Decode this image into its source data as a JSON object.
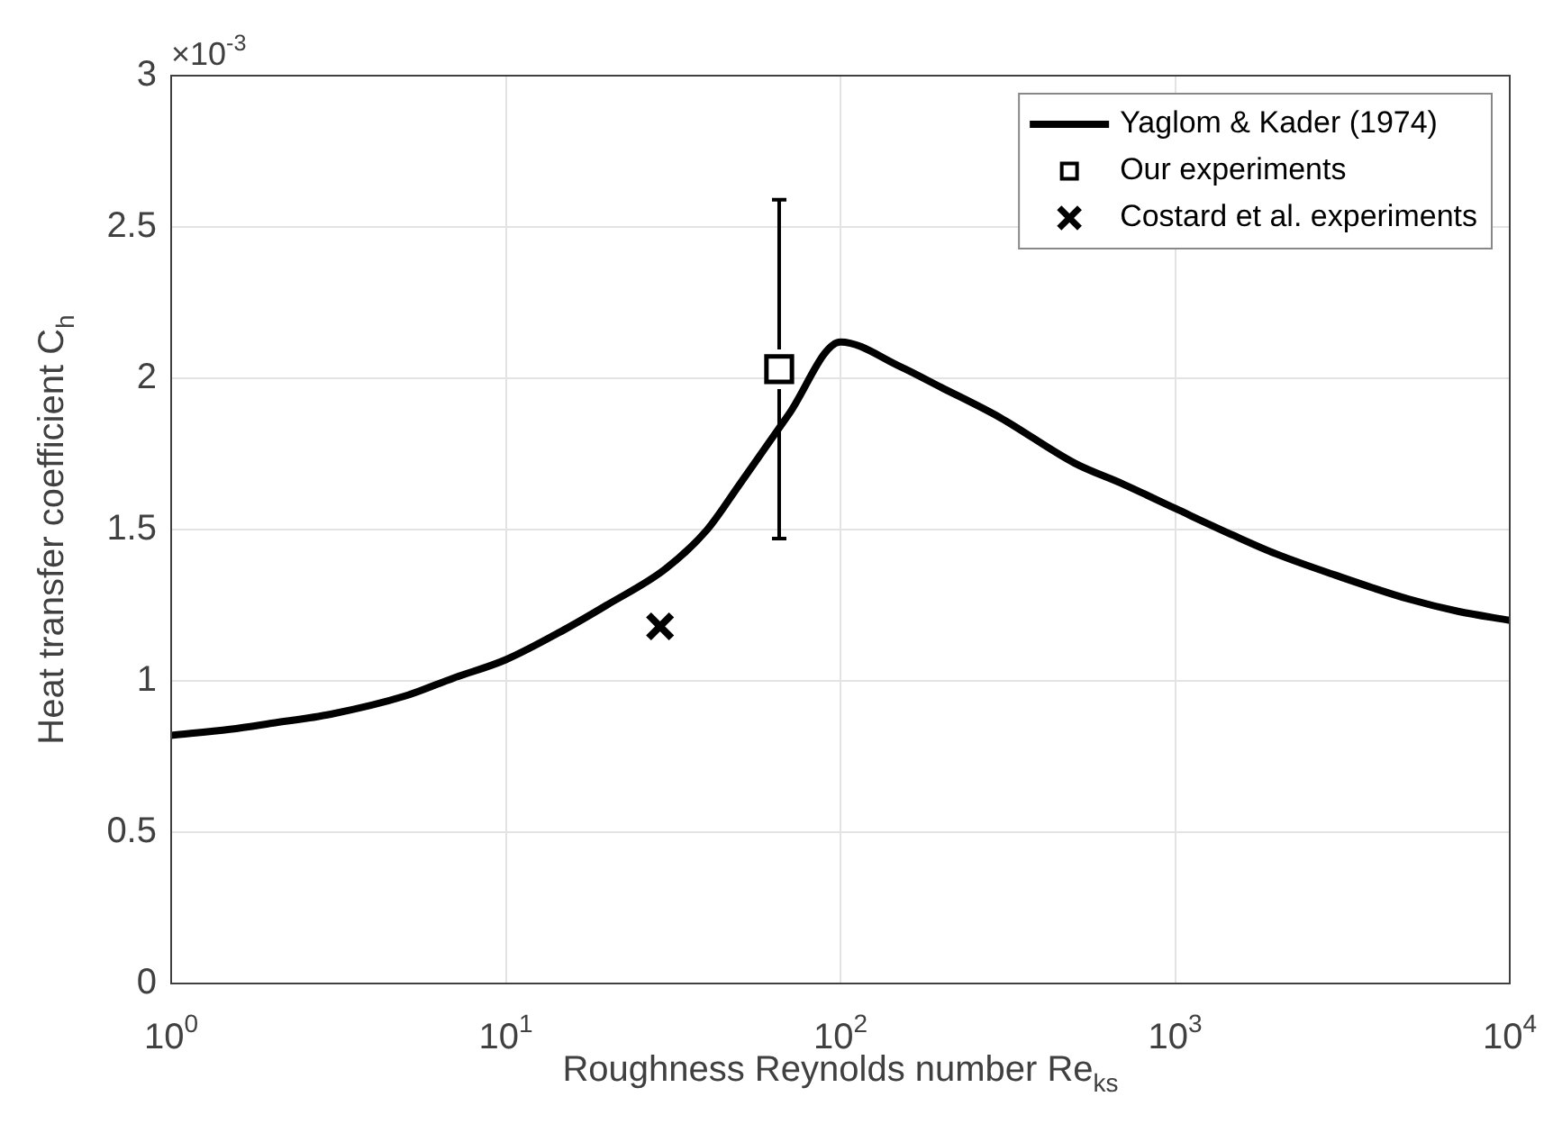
{
  "chart_data": {
    "type": "line",
    "xlabel": "Roughness Reynolds number Re$_{ks}$",
    "ylabel": "Heat transfer coefficient C$_{h}$",
    "annotations": [
      "×10$^{-3}$"
    ],
    "log": "x",
    "grid": true,
    "legend": "top right",
    "xlim": [
      1,
      10000
    ],
    "xticks": [
      {
        "value": 1,
        "label": "10$^{0}$"
      },
      {
        "value": 10,
        "label": "10$^{1}$"
      },
      {
        "value": 100,
        "label": "10$^{2}$"
      },
      {
        "value": 1000,
        "label": "10$^{3}$"
      },
      {
        "value": 10000,
        "label": "10$^{4}$"
      }
    ],
    "ylim": [
      0,
      3
    ],
    "yticks": [
      0,
      0.5,
      1,
      1.5,
      2,
      2.5,
      3
    ],
    "series": [
      {
        "name": "Yaglom & Kader (1974)",
        "color": "#000000",
        "marker": "none",
        "line_style": "solid",
        "x": [
          1,
          1.5,
          2,
          3,
          5,
          7,
          10,
          15,
          20,
          30,
          40,
          50,
          70,
          100,
          150,
          200,
          300,
          500,
          700,
          1000,
          1500,
          2000,
          3000,
          5000,
          7000,
          10000
        ],
        "values": [
          0.82,
          0.84,
          0.86,
          0.89,
          0.95,
          1.01,
          1.07,
          1.17,
          1.25,
          1.37,
          1.5,
          1.65,
          1.88,
          2.12,
          2.04,
          1.97,
          1.87,
          1.72,
          1.65,
          1.57,
          1.48,
          1.42,
          1.35,
          1.27,
          1.23,
          1.2
        ]
      },
      {
        "name": "Our experiments",
        "type": "scatter",
        "color": "#000000",
        "marker": "square",
        "x": [
          65.6
        ],
        "values": [
          2.03
        ],
        "errors": [
          [
            1.47,
            2.59
          ]
        ]
      },
      {
        "name": "Costard et al. experiments",
        "type": "scatter",
        "color": "#000000",
        "marker": "cross",
        "x": [
          28.9
        ],
        "values": [
          1.18
        ]
      }
    ]
  }
}
